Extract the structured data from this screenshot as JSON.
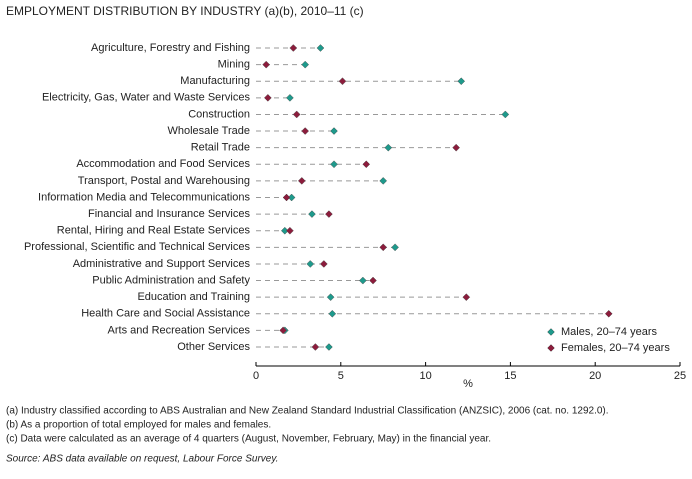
{
  "chart_data": {
    "type": "dot",
    "title": "EMPLOYMENT DISTRIBUTION  BY INDUSTRY (a)(b), 2010–11 (c)",
    "categories": [
      "Agriculture, Forestry and Fishing",
      "Mining",
      "Manufacturing",
      "Electricity, Gas, Water and Waste Services",
      "Construction",
      "Wholesale Trade",
      "Retail Trade",
      "Accommodation and Food Services",
      "Transport, Postal and Warehousing",
      "Information Media and Telecommunications",
      "Financial and Insurance Services",
      "Rental, Hiring and Real Estate Services",
      "Professional, Scientific and Technical Services",
      "Administrative and Support Services",
      "Public Administration and Safety",
      "Education and Training",
      "Health Care and Social Assistance",
      "Arts and Recreation Services",
      "Other Services"
    ],
    "series": [
      {
        "name": "Males, 20–74 years",
        "color": "#1e9a8c",
        "values": [
          3.8,
          2.9,
          12.1,
          2.0,
          14.7,
          4.6,
          7.8,
          4.6,
          7.5,
          2.1,
          3.3,
          1.7,
          8.2,
          3.2,
          6.3,
          4.4,
          4.5,
          1.7,
          4.3
        ]
      },
      {
        "name": "Females, 20–74 years",
        "color": "#8c1c3c",
        "values": [
          2.2,
          0.6,
          5.1,
          0.7,
          2.4,
          2.9,
          11.8,
          6.5,
          2.7,
          1.8,
          4.3,
          2.0,
          7.5,
          4.0,
          6.9,
          12.4,
          20.8,
          1.6,
          3.5
        ]
      }
    ],
    "xlim": [
      0,
      25
    ],
    "xticks": [
      0,
      5,
      10,
      15,
      20,
      25
    ],
    "xlabel": "%",
    "legend": "lower right",
    "notes": [
      "(a) Industry classified according to ABS Australian and New Zealand Standard Industrial Classification (ANZSIC), 2006 (cat. no. 1292.0).",
      "(b) As a proportion of total employed for males and females.",
      "(c)  Data were calculated as an average of 4 quarters (August, November, February, May) in the financial year."
    ],
    "source": "Source: ABS data available on request, Labour Force Survey."
  }
}
